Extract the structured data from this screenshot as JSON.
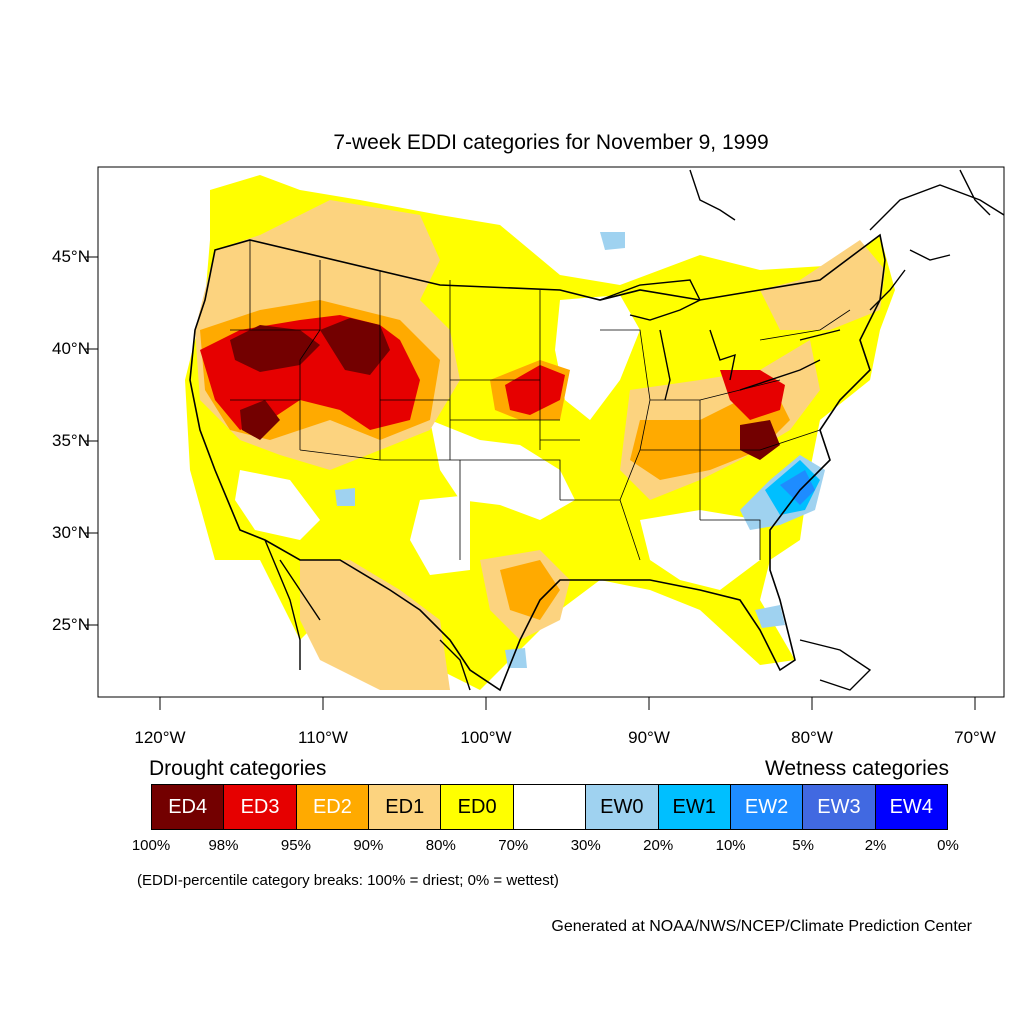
{
  "title": "7-week EDDI categories for November 9, 1999",
  "map": {
    "lat_labels": [
      "45°N",
      "40°N",
      "35°N",
      "30°N",
      "25°N"
    ],
    "lon_labels": [
      "120°W",
      "110°W",
      "100°W",
      "90°W",
      "80°W",
      "70°W"
    ]
  },
  "legend": {
    "drought_heading": "Drought categories",
    "wetness_heading": "Wetness categories",
    "categories": [
      {
        "label": "ED4",
        "color": "#730000",
        "text_color": "#ffffff"
      },
      {
        "label": "ED3",
        "color": "#e60000",
        "text_color": "#ffffff"
      },
      {
        "label": "ED2",
        "color": "#ffaa00",
        "text_color": "#ffffff"
      },
      {
        "label": "ED1",
        "color": "#fcd37f",
        "text_color": "#000000"
      },
      {
        "label": "ED0",
        "color": "#ffff00",
        "text_color": "#000000"
      },
      {
        "label": "",
        "color": "#ffffff",
        "text_color": "#000000"
      },
      {
        "label": "EW0",
        "color": "#9fd2f0",
        "text_color": "#000000"
      },
      {
        "label": "EW1",
        "color": "#00bfff",
        "text_color": "#000000"
      },
      {
        "label": "EW2",
        "color": "#1e8cff",
        "text_color": "#ffffff"
      },
      {
        "label": "EW3",
        "color": "#4169e1",
        "text_color": "#ffffff"
      },
      {
        "label": "EW4",
        "color": "#0000ff",
        "text_color": "#ffffff"
      }
    ],
    "breaks": [
      "100%",
      "98%",
      "95%",
      "90%",
      "80%",
      "70%",
      "30%",
      "20%",
      "10%",
      "5%",
      "2%",
      "0%"
    ],
    "note": "(EDDI-percentile category breaks: 100% = driest; 0% = wettest)"
  },
  "credit": "Generated at NOAA/NWS/NCEP/Climate Prediction Center"
}
